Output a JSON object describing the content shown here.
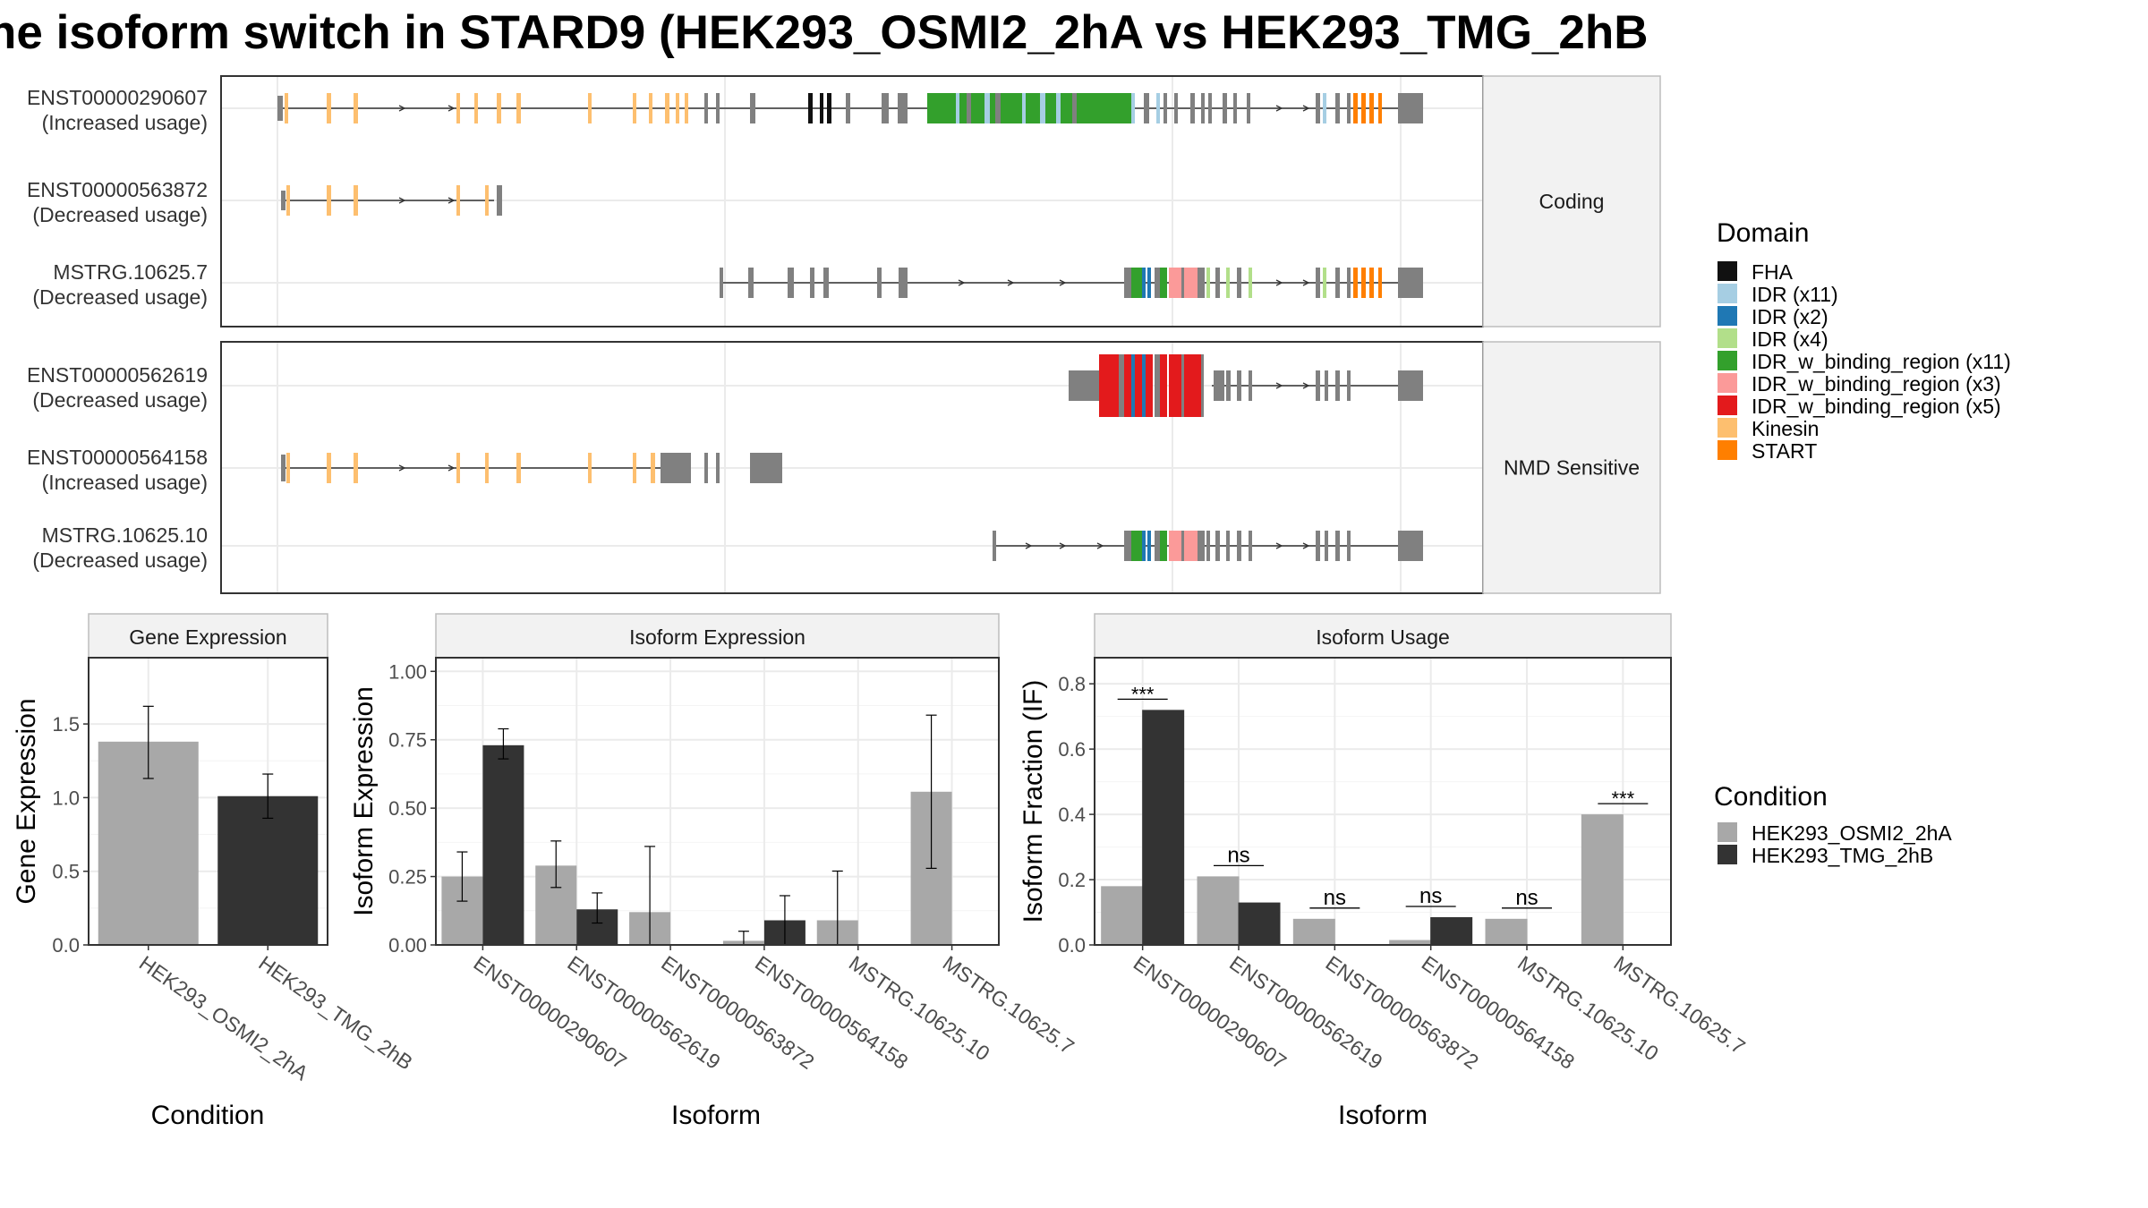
{
  "title": "he isoform switch in STARD9 (HEK293_OSMI2_2hA vs HEK293_TMG_2hB",
  "colors": {
    "cond1": "#a8a8a8",
    "cond2": "#333333",
    "intron": "#333333",
    "exon": "#808080",
    "strip": "#f2f2f2",
    "grid": "#ebebeb"
  },
  "domain_legend": {
    "title": "Domain",
    "items": [
      {
        "label": "FHA",
        "color": "#111111"
      },
      {
        "label": "IDR (x11)",
        "color": "#a6cee3"
      },
      {
        "label": "IDR (x2)",
        "color": "#1f78b4"
      },
      {
        "label": "IDR (x4)",
        "color": "#b2df8a"
      },
      {
        "label": "IDR_w_binding_region (x11)",
        "color": "#33a02c"
      },
      {
        "label": "IDR_w_binding_region (x3)",
        "color": "#fb9a99"
      },
      {
        "label": "IDR_w_binding_region (x5)",
        "color": "#e31a1c"
      },
      {
        "label": "Kinesin",
        "color": "#fdbf6f"
      },
      {
        "label": "START",
        "color": "#ff7f00"
      }
    ]
  },
  "condition_legend": {
    "title": "Condition",
    "items": [
      {
        "label": "HEK293_OSMI2_2hA",
        "color": "#a8a8a8"
      },
      {
        "label": "HEK293_TMG_2hB",
        "color": "#333333"
      }
    ]
  },
  "transcript_panels": [
    {
      "label": "Coding",
      "rows": [
        {
          "name": "ENST00000290607",
          "usage": "(Increased usage)",
          "start": 0.0,
          "end": 1.0
        },
        {
          "name": "ENST00000563872",
          "usage": "(Decreased usage)",
          "start": 0.0,
          "end": 0.19
        },
        {
          "name": "MSTRG.10625.7",
          "usage": "(Decreased usage)",
          "start": 0.39,
          "end": 1.0
        }
      ]
    },
    {
      "label": "NMD Sensitive",
      "rows": [
        {
          "name": "ENST00000562619",
          "usage": "(Decreased usage)",
          "start": 0.69,
          "end": 1.0
        },
        {
          "name": "ENST00000564158",
          "usage": "(Increased usage)",
          "start": 0.0,
          "end": 0.45
        },
        {
          "name": "MSTRG.10625.10",
          "usage": "(Decreased usage)",
          "start": 0.62,
          "end": 1.0
        }
      ]
    }
  ],
  "chart_data": [
    {
      "type": "bar",
      "strip": "Gene Expression",
      "xlabel": "Condition",
      "ylabel": "Gene Expression",
      "categories": [
        "HEK293_OSMI2_2hA",
        "HEK293_TMG_2hB"
      ],
      "values": [
        1.38,
        1.01
      ],
      "err_low": [
        1.13,
        0.86
      ],
      "err_high": [
        1.62,
        1.16
      ],
      "ylim": [
        0,
        1.95
      ],
      "yticks": [
        "0.0",
        "0.5",
        "1.0",
        "1.5"
      ]
    },
    {
      "type": "bar",
      "strip": "Isoform Expression",
      "xlabel": "Isoform",
      "ylabel": "Isoform Expression",
      "categories": [
        "ENST00000290607",
        "ENST00000562619",
        "ENST00000563872",
        "ENST00000564158",
        "MSTRG.10625.10",
        "MSTRG.10625.7"
      ],
      "series": [
        {
          "name": "HEK293_OSMI2_2hA",
          "values": [
            0.25,
            0.29,
            0.12,
            0.015,
            0.09,
            0.56
          ],
          "err_low": [
            0.16,
            0.21,
            0.0,
            0.0,
            0.0,
            0.28
          ],
          "err_high": [
            0.34,
            0.38,
            0.36,
            0.05,
            0.27,
            0.84
          ]
        },
        {
          "name": "HEK293_TMG_2hB",
          "values": [
            0.73,
            0.13,
            0.0,
            0.09,
            0.0,
            0.0
          ],
          "err_low": [
            0.68,
            0.08,
            0.0,
            0.0,
            0.0,
            0.0
          ],
          "err_high": [
            0.79,
            0.19,
            0.0,
            0.18,
            0.0,
            0.0
          ]
        }
      ],
      "ylim": [
        0,
        1.05
      ],
      "yticks": [
        "0.00",
        "0.25",
        "0.50",
        "0.75",
        "1.00"
      ]
    },
    {
      "type": "bar",
      "strip": "Isoform Usage",
      "xlabel": "Isoform",
      "ylabel": "Isoform Fraction (IF)",
      "categories": [
        "ENST00000290607",
        "ENST00000562619",
        "ENST00000563872",
        "ENST00000564158",
        "MSTRG.10625.10",
        "MSTRG.10625.7"
      ],
      "series": [
        {
          "name": "HEK293_OSMI2_2hA",
          "values": [
            0.18,
            0.21,
            0.08,
            0.015,
            0.08,
            0.4
          ]
        },
        {
          "name": "HEK293_TMG_2hB",
          "values": [
            0.72,
            0.13,
            0.0,
            0.085,
            0.0,
            0.0
          ]
        }
      ],
      "significance": [
        "***",
        "ns",
        "ns",
        "ns",
        "ns",
        "***"
      ],
      "ylim": [
        0,
        0.88
      ],
      "yticks": [
        "0.0",
        "0.2",
        "0.4",
        "0.6",
        "0.8"
      ]
    }
  ]
}
